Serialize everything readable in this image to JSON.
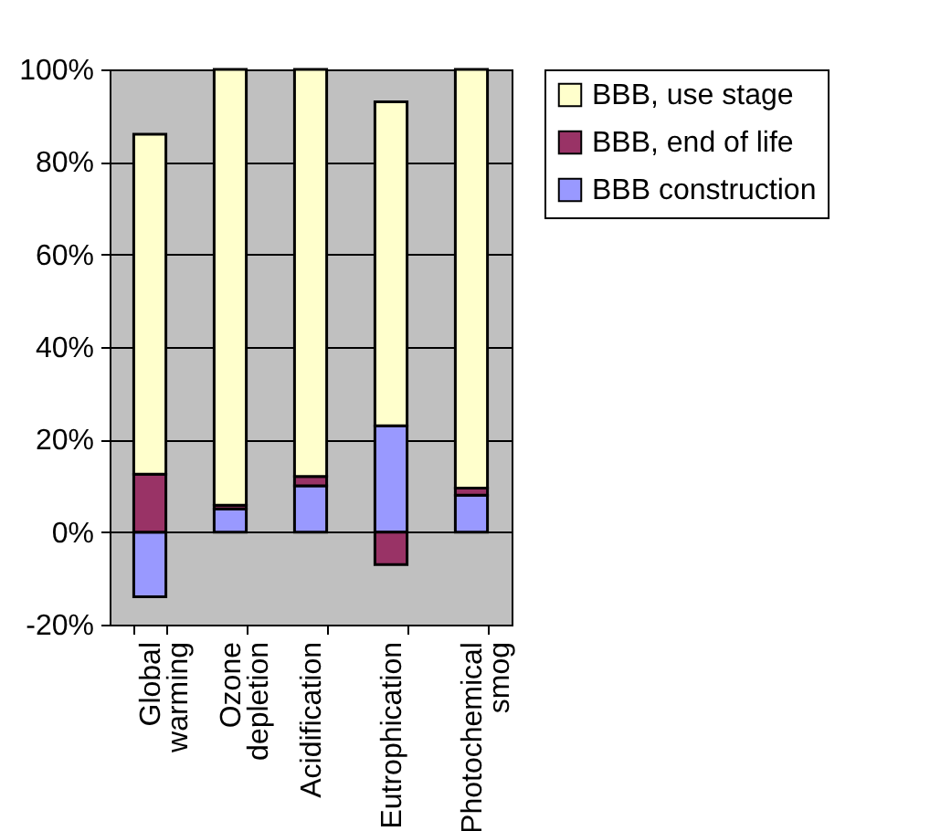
{
  "chart_data": {
    "type": "bar",
    "stacked": true,
    "categories": [
      "Global warming",
      "Ozone depletion",
      "Acidification",
      "Eutrophication",
      "Photochemical smog"
    ],
    "series": [
      {
        "name": "BBB construction",
        "color": "#9999ff",
        "values": [
          -14,
          5,
          10,
          23,
          8
        ]
      },
      {
        "name": "BBB, end of life",
        "color": "#993366",
        "values": [
          12.5,
          0.8,
          2,
          -7,
          1.5
        ]
      },
      {
        "name": "BBB, use stage",
        "color": "#ffffcc",
        "values": [
          73.5,
          94.2,
          88,
          70,
          90.5
        ]
      }
    ],
    "ylim": [
      -20,
      100
    ],
    "yticks": [
      {
        "value": -20,
        "label": "-20%"
      },
      {
        "value": 0,
        "label": "0%"
      },
      {
        "value": 20,
        "label": "20%"
      },
      {
        "value": 40,
        "label": "40%"
      },
      {
        "value": 60,
        "label": "60%"
      },
      {
        "value": 80,
        "label": "80%"
      },
      {
        "value": 100,
        "label": "100%"
      }
    ],
    "grid": "y",
    "legend": "right"
  }
}
